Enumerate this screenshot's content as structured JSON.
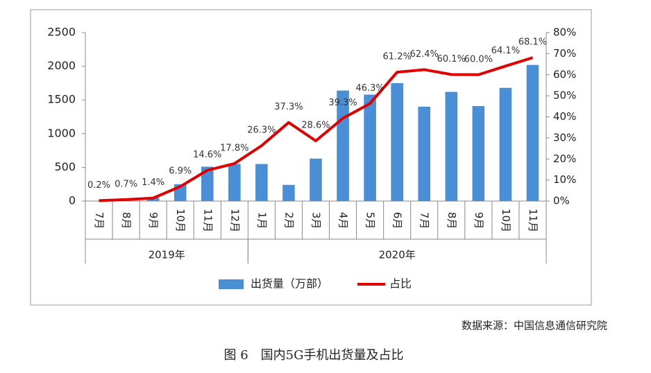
{
  "chart_data": {
    "type": "bar-line",
    "category_groups": [
      {
        "label": "2019年",
        "categories": [
          "7月",
          "8月",
          "9月",
          "10月",
          "11月",
          "12月"
        ]
      },
      {
        "label": "2020年",
        "categories": [
          "1月",
          "2月",
          "3月",
          "4月",
          "5月",
          "6月",
          "7月",
          "8月",
          "9月",
          "10月",
          "11月"
        ]
      }
    ],
    "series": [
      {
        "name": "出货量（万部）",
        "type": "bar",
        "color": "#4a8fd6",
        "values": [
          5,
          15,
          50,
          250,
          510,
          550,
          550,
          240,
          630,
          1640,
          1580,
          1750,
          1400,
          1620,
          1410,
          1680,
          2020
        ]
      },
      {
        "name": "占比",
        "type": "line",
        "axis": "y2",
        "color": "#e00000",
        "values": [
          0.2,
          0.7,
          1.4,
          6.9,
          14.6,
          17.8,
          26.3,
          37.3,
          28.6,
          39.3,
          46.3,
          61.2,
          62.4,
          60.1,
          60.0,
          64.1,
          68.1
        ],
        "value_labels": [
          "0.2%",
          "0.7%",
          "1.4%",
          "6.9%",
          "14.6%",
          "17.8%",
          "26.3%",
          "37.3%",
          "28.6%",
          "39.3%",
          "46.3%",
          "61.2%",
          "62.4%",
          "60.1%",
          "60.0%",
          "64.1%",
          "68.1%"
        ]
      }
    ],
    "ylim": [
      0,
      2500
    ],
    "yticks": [
      0,
      500,
      1000,
      1500,
      2000,
      2500
    ],
    "y2lim": [
      0,
      80
    ],
    "y2ticks": [
      {
        "value": 0,
        "label": "0%"
      },
      {
        "value": 10,
        "label": "10%"
      },
      {
        "value": 20,
        "label": "20%"
      },
      {
        "value": 30,
        "label": "30%"
      },
      {
        "value": 40,
        "label": "40%"
      },
      {
        "value": 50,
        "label": "50%"
      },
      {
        "value": 60,
        "label": "60%"
      },
      {
        "value": 70,
        "label": "70%"
      },
      {
        "value": 80,
        "label": "80%"
      }
    ],
    "legend": "bottom",
    "source": "数据来源：中国信息通信研究院",
    "caption": "图 6　国内5G手机出货量及占比"
  }
}
